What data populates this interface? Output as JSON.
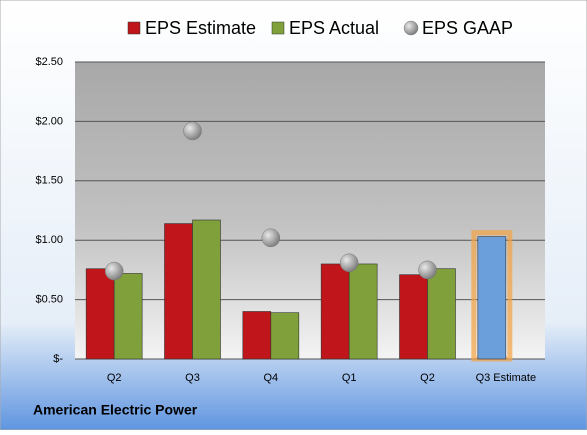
{
  "chart_data": {
    "type": "bar",
    "footnote": "American Electric Power",
    "categories": [
      "Q2",
      "Q3",
      "Q4",
      "Q1",
      "Q2",
      "Q3 Estimate"
    ],
    "series": [
      {
        "name": "EPS Estimate",
        "color": "#c0161b",
        "values": [
          0.76,
          1.14,
          0.4,
          0.8,
          0.71,
          1.03
        ],
        "colors": [
          "#c0161b",
          "#c0161b",
          "#c0161b",
          "#c0161b",
          "#c0161b",
          "#6a9fdc"
        ],
        "highlight_color": "#f4a243"
      },
      {
        "name": "EPS Actual",
        "color": "#7fa03a",
        "values": [
          0.72,
          1.17,
          0.39,
          0.8,
          0.76,
          null
        ]
      },
      {
        "name": "EPS GAAP",
        "color": "#9a9a9a",
        "type": "scatter",
        "values": [
          0.74,
          1.92,
          1.02,
          0.81,
          0.75,
          null
        ]
      }
    ],
    "ylim": [
      0,
      2.5
    ],
    "yticks": [
      {
        "value": 0,
        "label": "$-"
      },
      {
        "value": 0.5,
        "label": "$0.50"
      },
      {
        "value": 1,
        "label": "$1.00"
      },
      {
        "value": 1.5,
        "label": "$1.50"
      },
      {
        "value": 2,
        "label": "$2.00"
      },
      {
        "value": 2.5,
        "label": "$2.50"
      }
    ],
    "grid": true
  }
}
